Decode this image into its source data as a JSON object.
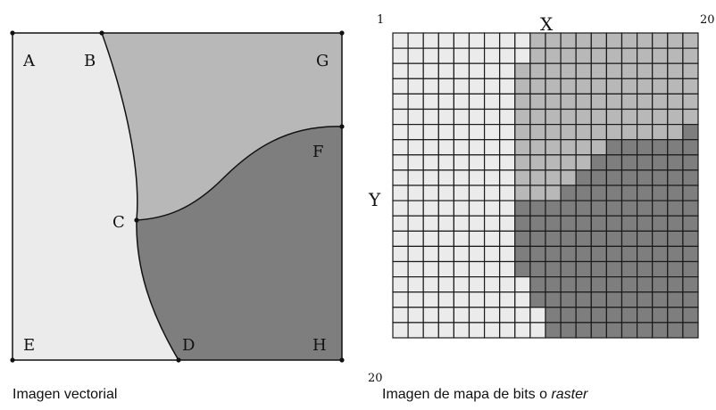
{
  "vector_panel": {
    "points": {
      "A": "A",
      "B": "B",
      "C": "C",
      "D": "D",
      "E": "E",
      "F": "F",
      "G": "G",
      "H": "H"
    },
    "caption": "Imagen vectorial"
  },
  "raster_panel": {
    "axis_x": "X",
    "axis_y": "Y",
    "tick_top_left": "1",
    "tick_top_right": "20",
    "tick_bottom_left": "20",
    "caption_prefix": "Imagen de mapa de bits o ",
    "caption_italic": "raster",
    "grid_size": 20,
    "colors": {
      "light": "#ebebeb",
      "medium": "#b8b8b8",
      "dark": "#7e7e7e",
      "outline": "#1a1a1a"
    },
    "rows": [
      "LLLLLLLLLMMMMMMMMMMM",
      "LLLLLLLLLMMMMMMMMMMM",
      "LLLLLLLLMMMMMMMMMMMM",
      "LLLLLLLLMMMMMMMMMMMM",
      "LLLLLLLLMMMMMMMMMMMM",
      "LLLLLLLLMMMMMMMMMMMM",
      "LLLLLLLLMMMMMMMMMMMD",
      "LLLLLLLLMMMMMMDDDDDD",
      "LLLLLLLLMMMMMDDDDDDD",
      "LLLLLLLLMMMMDDDDDDDD",
      "LLLLLLLLMMMDDDDDDDDD",
      "LLLLLLLLDDDDDDDDDDDD",
      "LLLLLLLLDDDDDDDDDDDD",
      "LLLLLLLLDDDDDDDDDDDD",
      "LLLLLLLLDDDDDDDDDDDD",
      "LLLLLLLLDDDDDDDDDDDD",
      "LLLLLLLLLDDDDDDDDDDD",
      "LLLLLLLLLDDDDDDDDDDD",
      "LLLLLLLLLLDDDDDDDDDD",
      "LLLLLLLLLLDDDDDDDDDD"
    ]
  }
}
